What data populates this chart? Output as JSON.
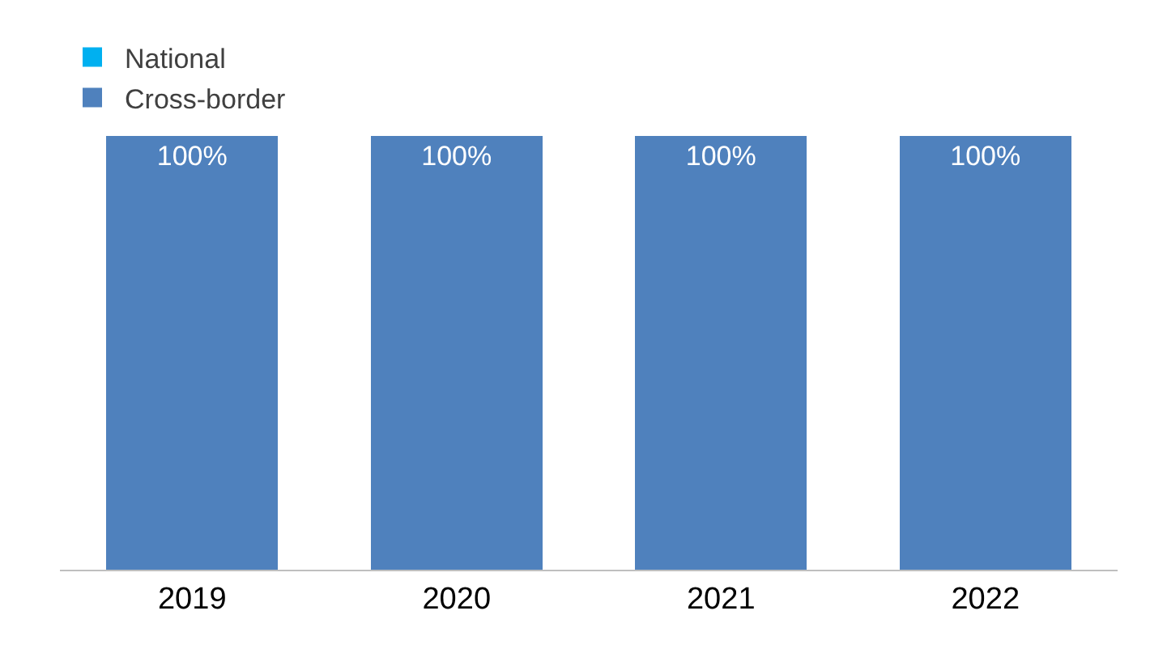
{
  "chart_data": {
    "type": "bar",
    "stacked": true,
    "categories": [
      "2019",
      "2020",
      "2021",
      "2022"
    ],
    "series": [
      {
        "name": "National",
        "color": "#00b0f0",
        "values": [
          0,
          0,
          0,
          0
        ]
      },
      {
        "name": "Cross-border",
        "color": "#4f81bd",
        "values": [
          100,
          100,
          100,
          100
        ],
        "value_labels": [
          "100%",
          "100%",
          "100%",
          "100%"
        ]
      }
    ],
    "legend": "top left"
  }
}
